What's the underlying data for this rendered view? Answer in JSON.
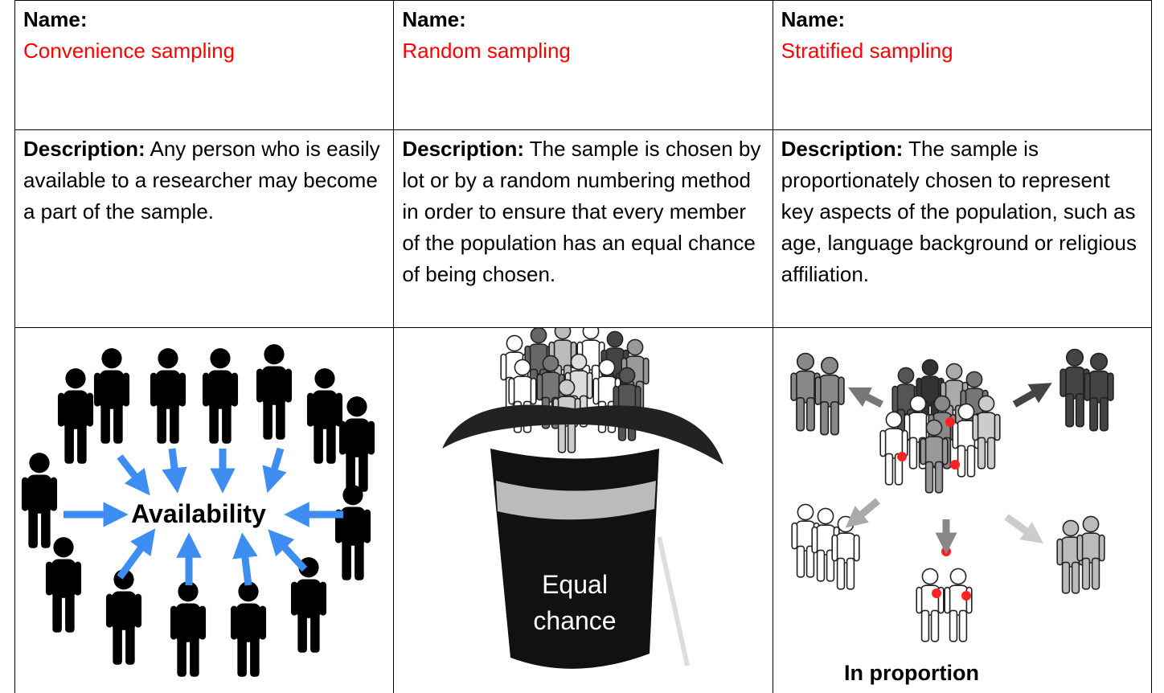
{
  "table": {
    "columns": [
      {
        "name_label": "Name:",
        "name": "Convenience sampling",
        "description_label": "Description:",
        "description": "Any person who is easily available to a researcher may become a part of the sample.",
        "image_label": "Availability"
      },
      {
        "name_label": "Name:",
        "name": "Random sampling",
        "description_label": "Description:",
        "description": "The sample is chosen by lot or by a random numbering method in order to ensure that every member of the population has an equal chance of being chosen.",
        "image_label": "Equal chance"
      },
      {
        "name_label": "Name:",
        "name": "Stratified sampling",
        "description_label": "Description:",
        "description": "The sample is proportionately chosen to represent key aspects of the population, such as age, language background or religious affiliation.",
        "image_label": "In proportion"
      }
    ]
  }
}
